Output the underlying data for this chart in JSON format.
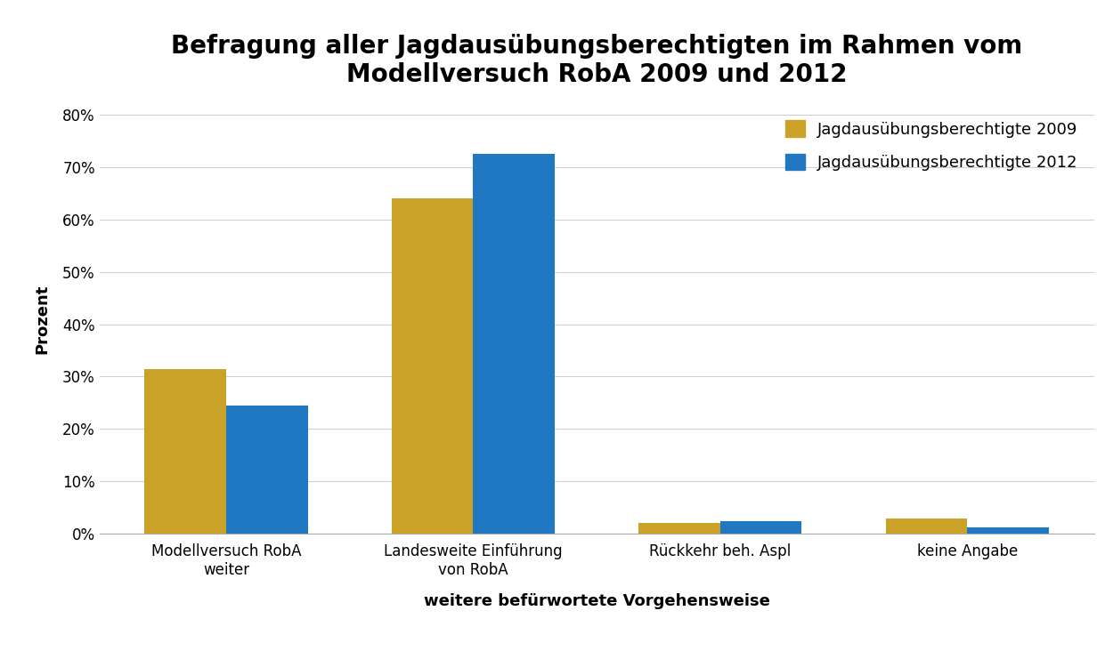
{
  "title": "Befragung aller Jagdausübungsberechtigten im Rahmen vom\nModellversuch RobA 2009 und 2012",
  "xlabel": "weitere befürwortete Vorgehensweise",
  "ylabel": "Prozent",
  "categories": [
    "Modellversuch RobA\nweiter",
    "Landesweite Einführung\nvon RobA",
    "Rückkehr beh. Aspl",
    "keine Angabe"
  ],
  "values_2009": [
    31.5,
    64.0,
    2.0,
    3.0
  ],
  "values_2012": [
    24.5,
    72.5,
    2.5,
    1.2
  ],
  "color_2009": "#C9A227",
  "color_2012": "#1F78C1",
  "legend_2009": "Jagdausübungsberechtigte 2009",
  "legend_2012": "Jagdausübungsberechtigte 2012",
  "ylim": [
    0,
    82
  ],
  "yticks": [
    0,
    10,
    20,
    30,
    40,
    50,
    60,
    70,
    80
  ],
  "ytick_labels": [
    "0%",
    "10%",
    "20%",
    "30%",
    "40%",
    "50%",
    "60%",
    "70%",
    "80%"
  ],
  "background_color": "#ffffff",
  "grid_color": "#d0d0d0",
  "title_fontsize": 20,
  "axis_label_fontsize": 13,
  "tick_fontsize": 12,
  "legend_fontsize": 13
}
